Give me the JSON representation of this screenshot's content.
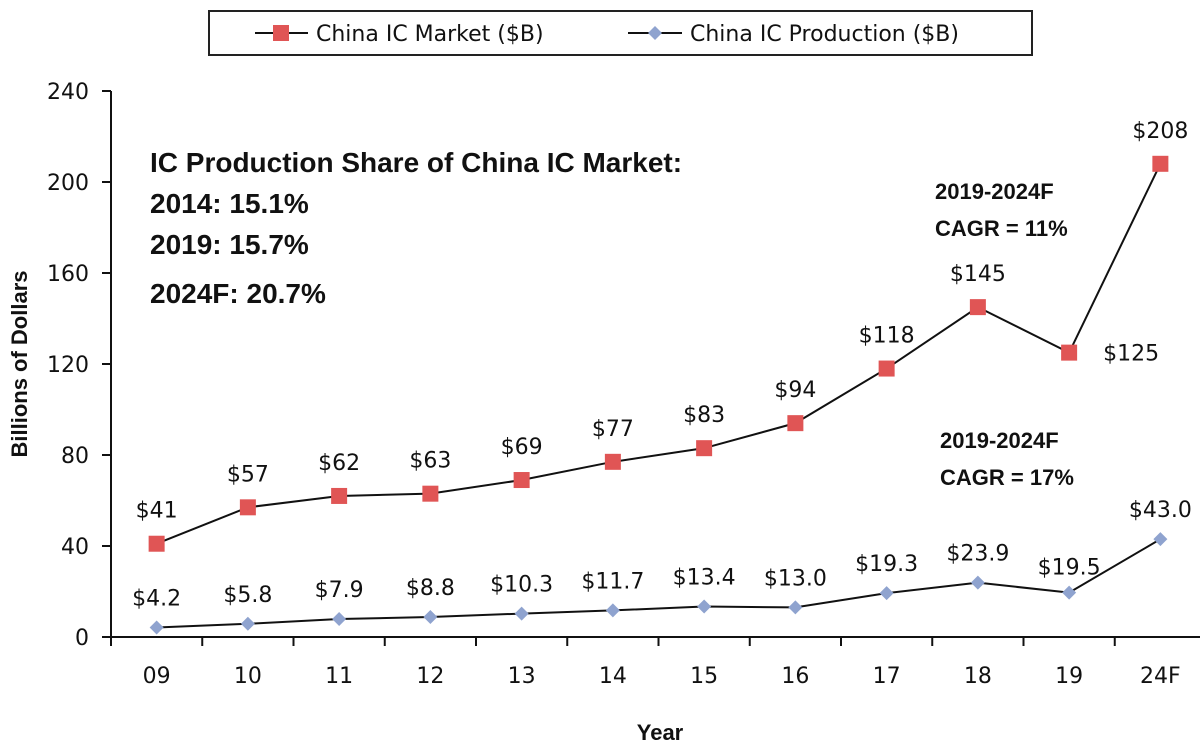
{
  "chart_data": {
    "type": "line",
    "categories": [
      "09",
      "10",
      "11",
      "12",
      "13",
      "14",
      "15",
      "16",
      "17",
      "18",
      "19",
      "24F"
    ],
    "series": [
      {
        "name": "China IC Market ($B)",
        "values": [
          41,
          57,
          62,
          63,
          69,
          77,
          83,
          94,
          118,
          145,
          125,
          208
        ],
        "labels": [
          "$41",
          "$57",
          "$62",
          "$63",
          "$69",
          "$77",
          "$83",
          "$94",
          "$118",
          "$145",
          "$125",
          "$208"
        ],
        "color": "#e05555",
        "marker": "square"
      },
      {
        "name": "China IC Production ($B)",
        "values": [
          4.2,
          5.8,
          7.9,
          8.8,
          10.3,
          11.7,
          13.4,
          13.0,
          19.3,
          23.9,
          19.5,
          43.0
        ],
        "labels": [
          "$4.2",
          "$5.8",
          "$7.9",
          "$8.8",
          "$10.3",
          "$11.7",
          "$13.4",
          "$13.0",
          "$19.3",
          "$23.9",
          "$19.5",
          "$43.0"
        ],
        "color": "#8fa3cf",
        "marker": "diamond"
      }
    ],
    "xlabel": "Year",
    "ylabel": "Billions of Dollars",
    "ylim": [
      0,
      240
    ],
    "yticks": [
      0,
      40,
      80,
      120,
      160,
      200,
      240
    ],
    "grid": false,
    "legend": "top-center",
    "annotations": {
      "share": {
        "title": "IC Production Share of China IC Market:",
        "lines": [
          "2014: 15.1%",
          "2019: 15.7%",
          "2024F: 20.7%"
        ]
      },
      "market_cagr": [
        "2019-2024F",
        "CAGR = 11%"
      ],
      "production_cagr": [
        "2019-2024F",
        "CAGR = 17%"
      ]
    }
  }
}
